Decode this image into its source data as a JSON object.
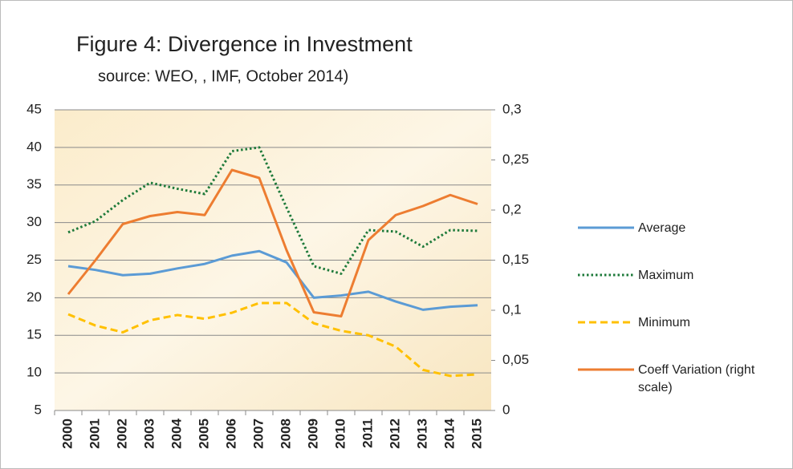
{
  "chart_data": {
    "type": "line",
    "title": "Figure 4: Divergence in Investment",
    "subtitle": "source: WEO, , IMF, October 2014)",
    "categories": [
      "2000",
      "2001",
      "2002",
      "2003",
      "2004",
      "2005",
      "2006",
      "2007",
      "2008",
      "2009",
      "2010",
      "2011",
      "2012",
      "2013",
      "2014",
      "2015"
    ],
    "series": [
      {
        "name": "Average",
        "color": "#5b9bd5",
        "style": "solid",
        "values": [
          24.2,
          23.7,
          23.0,
          23.2,
          23.9,
          24.5,
          25.6,
          26.2,
          24.7,
          20.0,
          20.3,
          20.8,
          19.5,
          18.4,
          18.8,
          19.0
        ]
      },
      {
        "name": "Maximum",
        "color": "#1e7a3a",
        "style": "dotted",
        "values": [
          28.7,
          30.2,
          33.0,
          35.3,
          34.5,
          33.8,
          39.5,
          40.0,
          32.0,
          24.2,
          23.2,
          29.0,
          28.8,
          26.8,
          29.0,
          28.9
        ]
      },
      {
        "name": "Minimum",
        "color": "#ffc000",
        "style": "dashed",
        "values": [
          17.8,
          16.3,
          15.4,
          17.0,
          17.7,
          17.2,
          18.0,
          19.3,
          19.3,
          16.6,
          15.6,
          15.0,
          13.5,
          10.4,
          9.6,
          9.8
        ]
      },
      {
        "name": "Coeff Variation (right scale)",
        "color": "#ed7d31",
        "style": "solid",
        "axis": "y2",
        "values": [
          0.116,
          0.15,
          0.186,
          0.194,
          0.198,
          0.195,
          0.24,
          0.232,
          0.16,
          0.098,
          0.094,
          0.17,
          0.195,
          0.204,
          0.215,
          0.206
        ]
      }
    ],
    "ylim": [
      5,
      45
    ],
    "yticks": [
      5,
      10,
      15,
      20,
      25,
      30,
      35,
      40,
      45
    ],
    "y2lim": [
      0,
      0.3
    ],
    "y2ticks": [
      0,
      {
        "value": 0.05,
        "label": "0,05"
      },
      {
        "value": 0.1,
        "label": "0,1"
      },
      {
        "value": 0.15,
        "label": "0,15"
      },
      {
        "value": 0.2,
        "label": "0,2"
      },
      {
        "value": 0.25,
        "label": "0,25"
      },
      {
        "value": 0.3,
        "label": "0,3"
      }
    ],
    "grid": true
  }
}
